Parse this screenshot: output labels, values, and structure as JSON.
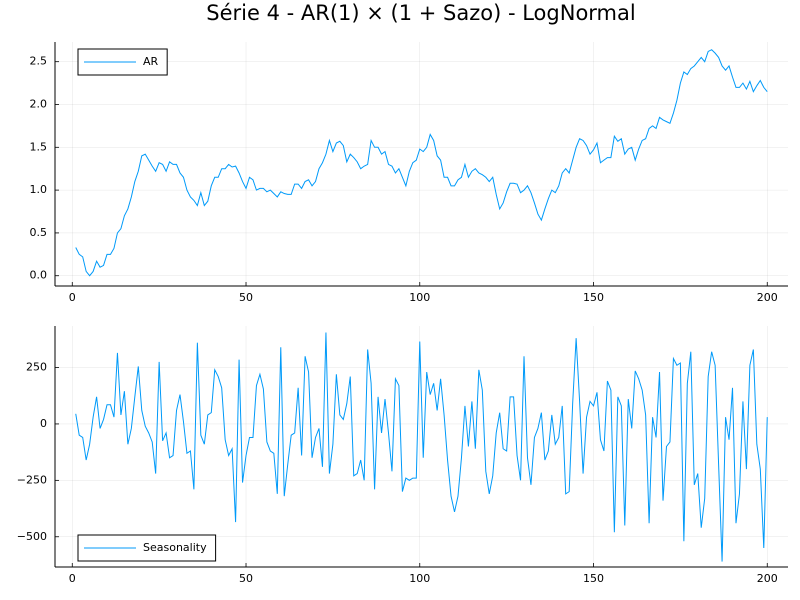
{
  "chart_data": [
    {
      "type": "line",
      "title": "Série 4 - AR(1) × (1 + Sazo) - LogNormal",
      "x": [
        1,
        2,
        3,
        4,
        5,
        6,
        7,
        8,
        9,
        10,
        11,
        12,
        13,
        14,
        15,
        16,
        17,
        18,
        19,
        20,
        21,
        22,
        23,
        24,
        25,
        26,
        27,
        28,
        29,
        30,
        31,
        32,
        33,
        34,
        35,
        36,
        37,
        38,
        39,
        40,
        41,
        42,
        43,
        44,
        45,
        46,
        47,
        48,
        49,
        50,
        51,
        52,
        53,
        54,
        55,
        56,
        57,
        58,
        59,
        60,
        61,
        62,
        63,
        64,
        65,
        66,
        67,
        68,
        69,
        70,
        71,
        72,
        73,
        74,
        75,
        76,
        77,
        78,
        79,
        80,
        81,
        82,
        83,
        84,
        85,
        86,
        87,
        88,
        89,
        90,
        91,
        92,
        93,
        94,
        95,
        96,
        97,
        98,
        99,
        100,
        101,
        102,
        103,
        104,
        105,
        106,
        107,
        108,
        109,
        110,
        111,
        112,
        113,
        114,
        115,
        116,
        117,
        118,
        119,
        120,
        121,
        122,
        123,
        124,
        125,
        126,
        127,
        128,
        129,
        130,
        131,
        132,
        133,
        134,
        135,
        136,
        137,
        138,
        139,
        140,
        141,
        142,
        143,
        144,
        145,
        146,
        147,
        148,
        149,
        150,
        151,
        152,
        153,
        154,
        155,
        156,
        157,
        158,
        159,
        160,
        161,
        162,
        163,
        164,
        165,
        166,
        167,
        168,
        169,
        170,
        171,
        172,
        173,
        174,
        175,
        176,
        177,
        178,
        179,
        180,
        181,
        182,
        183,
        184,
        185,
        186,
        187,
        188,
        189,
        190,
        191,
        192,
        193,
        194,
        195,
        196,
        197,
        198,
        199,
        200
      ],
      "series": [
        {
          "name": "AR",
          "color": "#009af9",
          "values": [
            0.33,
            0.25,
            0.22,
            0.05,
            0.0,
            0.05,
            0.17,
            0.1,
            0.12,
            0.25,
            0.25,
            0.32,
            0.5,
            0.55,
            0.7,
            0.78,
            0.92,
            1.1,
            1.22,
            1.4,
            1.42,
            1.35,
            1.28,
            1.22,
            1.32,
            1.3,
            1.22,
            1.33,
            1.3,
            1.3,
            1.2,
            1.15,
            1.0,
            0.92,
            0.88,
            0.82,
            0.97,
            0.82,
            0.87,
            1.05,
            1.15,
            1.15,
            1.25,
            1.25,
            1.3,
            1.27,
            1.28,
            1.2,
            1.1,
            1.02,
            1.15,
            1.12,
            1.0,
            1.02,
            1.02,
            0.98,
            1.0,
            0.96,
            0.92,
            0.98,
            0.96,
            0.95,
            0.95,
            1.07,
            1.07,
            1.02,
            1.1,
            1.12,
            1.05,
            1.1,
            1.25,
            1.32,
            1.42,
            1.58,
            1.45,
            1.55,
            1.57,
            1.52,
            1.33,
            1.42,
            1.38,
            1.33,
            1.25,
            1.28,
            1.3,
            1.58,
            1.5,
            1.5,
            1.42,
            1.45,
            1.3,
            1.28,
            1.2,
            1.25,
            1.15,
            1.05,
            1.22,
            1.32,
            1.35,
            1.48,
            1.45,
            1.5,
            1.65,
            1.58,
            1.4,
            1.35,
            1.15,
            1.15,
            1.05,
            1.05,
            1.12,
            1.15,
            1.3,
            1.15,
            1.22,
            1.25,
            1.2,
            1.18,
            1.15,
            1.1,
            1.15,
            0.95,
            0.78,
            0.85,
            0.98,
            1.08,
            1.08,
            1.07,
            0.97,
            1.0,
            1.05,
            0.97,
            0.85,
            0.72,
            0.65,
            0.78,
            0.9,
            1.0,
            0.97,
            1.05,
            1.2,
            1.25,
            1.2,
            1.35,
            1.5,
            1.6,
            1.58,
            1.52,
            1.42,
            1.47,
            1.55,
            1.32,
            1.35,
            1.38,
            1.38,
            1.63,
            1.57,
            1.6,
            1.42,
            1.48,
            1.5,
            1.35,
            1.48,
            1.58,
            1.6,
            1.72,
            1.75,
            1.72,
            1.85,
            1.82,
            1.8,
            1.78,
            1.9,
            2.05,
            2.25,
            2.38,
            2.35,
            2.42,
            2.45,
            2.5,
            2.55,
            2.5,
            2.62,
            2.64,
            2.6,
            2.55,
            2.45,
            2.4,
            2.45,
            2.32,
            2.2,
            2.2,
            2.25,
            2.18,
            2.27,
            2.15,
            2.22,
            2.28,
            2.2,
            2.15
          ]
        }
      ],
      "xlim": [
        -4.97,
        205.97
      ],
      "ylim": [
        -0.12,
        2.73
      ],
      "xticks": [
        0,
        50,
        100,
        150,
        200
      ],
      "yticks": [
        {
          "value": 0,
          "label": "0.0"
        },
        0.5,
        {
          "value": 1,
          "label": "1.0"
        },
        1.5,
        {
          "value": 2,
          "label": "2.0"
        },
        2.5
      ],
      "grid": true,
      "legend": "top-left"
    },
    {
      "type": "line",
      "x": [
        1,
        2,
        3,
        4,
        5,
        6,
        7,
        8,
        9,
        10,
        11,
        12,
        13,
        14,
        15,
        16,
        17,
        18,
        19,
        20,
        21,
        22,
        23,
        24,
        25,
        26,
        27,
        28,
        29,
        30,
        31,
        32,
        33,
        34,
        35,
        36,
        37,
        38,
        39,
        40,
        41,
        42,
        43,
        44,
        45,
        46,
        47,
        48,
        49,
        50,
        51,
        52,
        53,
        54,
        55,
        56,
        57,
        58,
        59,
        60,
        61,
        62,
        63,
        64,
        65,
        66,
        67,
        68,
        69,
        70,
        71,
        72,
        73,
        74,
        75,
        76,
        77,
        78,
        79,
        80,
        81,
        82,
        83,
        84,
        85,
        86,
        87,
        88,
        89,
        90,
        91,
        92,
        93,
        94,
        95,
        96,
        97,
        98,
        99,
        100,
        101,
        102,
        103,
        104,
        105,
        106,
        107,
        108,
        109,
        110,
        111,
        112,
        113,
        114,
        115,
        116,
        117,
        118,
        119,
        120,
        121,
        122,
        123,
        124,
        125,
        126,
        127,
        128,
        129,
        130,
        131,
        132,
        133,
        134,
        135,
        136,
        137,
        138,
        139,
        140,
        141,
        142,
        143,
        144,
        145,
        146,
        147,
        148,
        149,
        150,
        151,
        152,
        153,
        154,
        155,
        156,
        157,
        158,
        159,
        160,
        161,
        162,
        163,
        164,
        165,
        166,
        167,
        168,
        169,
        170,
        171,
        172,
        173,
        174,
        175,
        176,
        177,
        178,
        179,
        180,
        181,
        182,
        183,
        184,
        185,
        186,
        187,
        188,
        189,
        190,
        191,
        192,
        193,
        194,
        195,
        196,
        197,
        198,
        199,
        200
      ],
      "series": [
        {
          "name": "Seasonality",
          "color": "#009af9",
          "values": [
            45,
            -50,
            -60,
            -160,
            -90,
            30,
            120,
            -20,
            20,
            85,
            85,
            30,
            315,
            40,
            145,
            -90,
            -20,
            120,
            255,
            60,
            -10,
            -40,
            -80,
            -220,
            275,
            -75,
            -40,
            -150,
            -140,
            60,
            130,
            10,
            -130,
            -120,
            -290,
            360,
            -50,
            -90,
            40,
            50,
            240,
            210,
            160,
            -70,
            -140,
            -110,
            -435,
            285,
            -260,
            -140,
            -60,
            -60,
            170,
            220,
            155,
            -80,
            -120,
            -130,
            -310,
            340,
            -320,
            -180,
            -50,
            -40,
            160,
            -140,
            300,
            230,
            -150,
            -60,
            -20,
            -190,
            405,
            -220,
            -90,
            220,
            40,
            20,
            90,
            210,
            -230,
            -220,
            -160,
            -250,
            330,
            180,
            -290,
            120,
            -40,
            110,
            -40,
            -210,
            200,
            170,
            -300,
            -240,
            -250,
            -240,
            -240,
            365,
            -150,
            230,
            130,
            180,
            60,
            200,
            40,
            -160,
            -320,
            -390,
            -320,
            -150,
            80,
            -100,
            100,
            -110,
            240,
            150,
            -210,
            -310,
            -230,
            -40,
            50,
            -110,
            -120,
            120,
            120,
            -140,
            -250,
            300,
            -150,
            -270,
            -60,
            -20,
            50,
            -160,
            -120,
            40,
            -90,
            -60,
            80,
            -310,
            -300,
            90,
            380,
            100,
            -220,
            30,
            100,
            80,
            140,
            -70,
            -120,
            190,
            150,
            -480,
            120,
            80,
            -450,
            110,
            -20,
            235,
            200,
            150,
            40,
            -440,
            30,
            -60,
            230,
            -340,
            -100,
            -80,
            290,
            260,
            270,
            -520,
            180,
            320,
            -270,
            -220,
            -460,
            -330,
            210,
            320,
            260,
            -180,
            -610,
            30,
            -70,
            160,
            -440,
            -310,
            100,
            -200,
            260,
            330,
            -90,
            -200,
            -550,
            30
          ]
        }
      ],
      "xlim": [
        -4.97,
        205.97
      ],
      "ylim": [
        -634,
        434
      ],
      "xticks": [
        0,
        50,
        100,
        150,
        200
      ],
      "yticks": [
        {
          "value": -500,
          "label": "−500"
        },
        {
          "value": -250,
          "label": "−250"
        },
        0,
        250
      ],
      "grid": true,
      "legend": "bottom-left"
    }
  ]
}
